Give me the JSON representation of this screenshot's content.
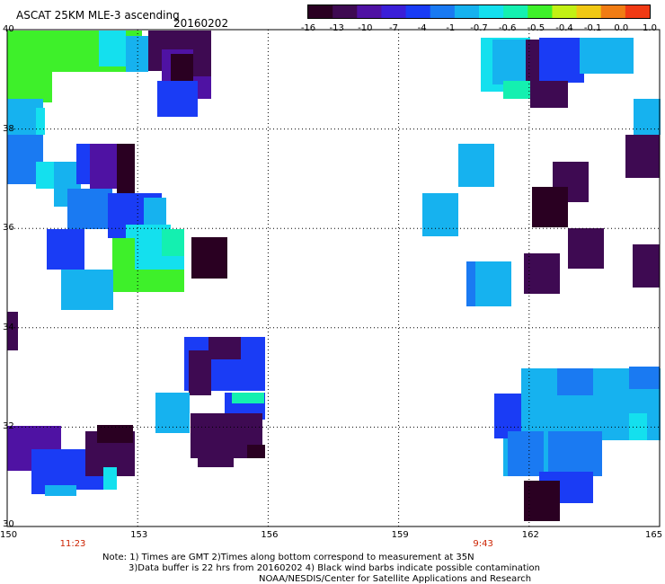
{
  "header": {
    "title": "ASCAT 25KM MLE-3 ascending",
    "date": "20160202"
  },
  "colorbar": {
    "labels": [
      "-16",
      "-13",
      "-10",
      "-7",
      "-4",
      "-1",
      "-0.7",
      "-0.6",
      "-0.5",
      "-0.4",
      "-0.1",
      "0.0",
      "1.0"
    ],
    "colors": [
      "#2a0022",
      "#3e0a52",
      "#4f12a3",
      "#3b1fd8",
      "#1a3cf5",
      "#1a7af2",
      "#16b2ef",
      "#14e0ee",
      "#14f0b0",
      "#3ef02a",
      "#c2f014",
      "#f0c814",
      "#f07c14",
      "#f03a14"
    ]
  },
  "axes": {
    "x_ticks": [
      "150",
      "153",
      "156",
      "159",
      "162",
      "165"
    ],
    "y_ticks": [
      "40",
      "38",
      "36",
      "34",
      "32",
      "30"
    ],
    "y_tick_values": [
      40,
      38,
      36,
      34,
      32,
      30
    ]
  },
  "times": [
    {
      "lon": 151.5,
      "label": "11:23"
    },
    {
      "lon": 161.0,
      "label": "9:43"
    }
  ],
  "notes": {
    "line1": "Note: 1) Times are GMT 2)Times along bottom correspond to measurement at 35N",
    "line2": "3)Data buffer is 22 hrs from 20160202 4) Black wind barbs indicate possible contamination",
    "line3": "NOAA/NESDIS/Center for Satellite Applications and Research"
  }
}
